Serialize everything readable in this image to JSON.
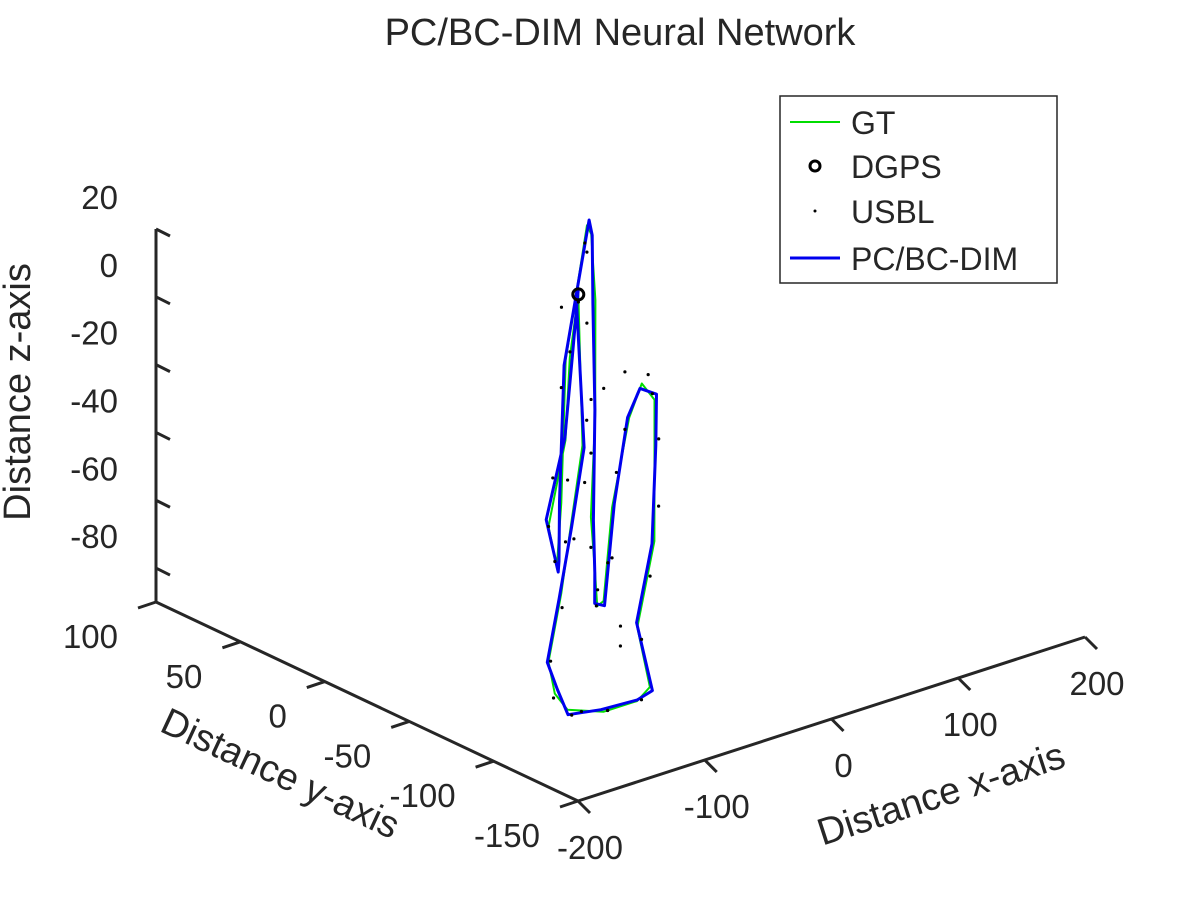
{
  "chart_data": {
    "type": "line3d",
    "title": "PC/BC-DIM Neural Network",
    "xlabel": "Distance x-axis",
    "ylabel": "Distance y-axis",
    "zlabel": "Distance z-axis",
    "xlim": [
      -200,
      200
    ],
    "ylim": [
      -150,
      100
    ],
    "zlim": [
      -90,
      20
    ],
    "xticks": [
      -200,
      -100,
      0,
      100,
      200
    ],
    "yticks": [
      -150,
      -100,
      -50,
      0,
      50,
      100
    ],
    "zticks": [
      -80,
      -60,
      -40,
      -20,
      0,
      20
    ],
    "grid": false,
    "legend": {
      "placement": "top-right",
      "entries": [
        "GT",
        "DGPS",
        "USBL",
        "PC/BC-DIM"
      ]
    },
    "colors": {
      "gt": "#00dd00",
      "pcbcdim": "#0000ee",
      "dgps": "#000000",
      "usbl": "#000000",
      "axis": "#262626"
    },
    "series": [
      {
        "name": "GT",
        "style": "line",
        "points": [
          [
            0,
            0,
            0
          ],
          [
            -40,
            -25,
            -8
          ],
          [
            -90,
            -60,
            -18
          ],
          [
            -150,
            -95,
            -28
          ],
          [
            -170,
            -115,
            -33
          ],
          [
            -150,
            -100,
            -38
          ],
          [
            -80,
            -50,
            -40
          ],
          [
            30,
            30,
            -30
          ],
          [
            140,
            100,
            -20
          ],
          [
            150,
            105,
            -25
          ],
          [
            120,
            80,
            -35
          ],
          [
            40,
            20,
            -45
          ],
          [
            -30,
            -30,
            -55
          ],
          [
            -60,
            -55,
            -62
          ],
          [
            -65,
            -60,
            -70
          ],
          [
            -40,
            -45,
            -75
          ],
          [
            40,
            10,
            -70
          ],
          [
            120,
            60,
            -65
          ],
          [
            150,
            75,
            -62
          ],
          [
            160,
            75,
            -68
          ],
          [
            140,
            60,
            -75
          ],
          [
            60,
            0,
            -80
          ],
          [
            -20,
            -50,
            -84
          ],
          [
            -70,
            -95,
            -85
          ],
          [
            -100,
            -110,
            -82
          ],
          [
            -140,
            -120,
            -78
          ],
          [
            -175,
            -125,
            -72
          ],
          [
            -185,
            -125,
            -66
          ],
          [
            -170,
            -110,
            -62
          ],
          [
            -120,
            -80,
            -55
          ],
          [
            -80,
            -55,
            -48
          ],
          [
            -30,
            -25,
            -35
          ],
          [
            0,
            0,
            0
          ]
        ]
      },
      {
        "name": "PC/BC-DIM",
        "style": "line",
        "points": [
          [
            0,
            0,
            0
          ],
          [
            -40,
            -25,
            -7
          ],
          [
            -90,
            -60,
            -17
          ],
          [
            -150,
            -95,
            -27
          ],
          [
            -170,
            -115,
            -33
          ],
          [
            -150,
            -100,
            -38
          ],
          [
            -80,
            -50,
            -40
          ],
          [
            30,
            30,
            -30
          ],
          [
            140,
            100,
            -20
          ],
          [
            150,
            105,
            -25
          ],
          [
            120,
            80,
            -35
          ],
          [
            40,
            20,
            -45
          ],
          [
            -30,
            -30,
            -55
          ],
          [
            -60,
            -55,
            -62
          ],
          [
            -65,
            -60,
            -70
          ],
          [
            -40,
            -45,
            -75
          ],
          [
            40,
            10,
            -70
          ],
          [
            120,
            60,
            -65
          ],
          [
            150,
            75,
            -62
          ],
          [
            160,
            75,
            -68
          ],
          [
            140,
            60,
            -75
          ],
          [
            60,
            0,
            -80
          ],
          [
            -20,
            -50,
            -84
          ],
          [
            -70,
            -95,
            -85
          ],
          [
            -100,
            -110,
            -82
          ],
          [
            -140,
            -120,
            -78
          ],
          [
            -175,
            -125,
            -72
          ],
          [
            -185,
            -125,
            -66
          ],
          [
            -170,
            -110,
            -62
          ],
          [
            -120,
            -80,
            -55
          ],
          [
            -80,
            -55,
            -48
          ],
          [
            -30,
            -25,
            -35
          ],
          [
            0,
            0,
            0
          ]
        ]
      },
      {
        "name": "DGPS",
        "style": "marker-o",
        "points": [
          [
            0,
            0,
            0
          ]
        ]
      },
      {
        "name": "USBL",
        "style": "dots",
        "points": [
          [
            -150,
            -95,
            -28
          ],
          [
            -120,
            -75,
            -22
          ],
          [
            -60,
            -35,
            -12
          ],
          [
            -165,
            -110,
            -33
          ],
          [
            -110,
            -80,
            -40
          ],
          [
            40,
            35,
            -30
          ],
          [
            80,
            60,
            -26
          ],
          [
            120,
            85,
            -22
          ],
          [
            145,
            105,
            -27
          ],
          [
            100,
            70,
            -37
          ],
          [
            60,
            30,
            -42
          ],
          [
            10,
            0,
            -48
          ],
          [
            -50,
            -45,
            -58
          ],
          [
            -62,
            -58,
            -66
          ],
          [
            -55,
            -52,
            -73
          ],
          [
            0,
            -20,
            -73
          ],
          [
            70,
            30,
            -68
          ],
          [
            110,
            55,
            -66
          ],
          [
            155,
            75,
            -60
          ],
          [
            165,
            80,
            -68
          ],
          [
            150,
            65,
            -76
          ],
          [
            90,
            20,
            -78
          ],
          [
            30,
            -20,
            -82
          ],
          [
            -30,
            -60,
            -84
          ],
          [
            -90,
            -105,
            -84
          ],
          [
            -130,
            -115,
            -80
          ],
          [
            -160,
            -122,
            -75
          ],
          [
            -190,
            -128,
            -66
          ],
          [
            -175,
            -115,
            -60
          ],
          [
            -130,
            -88,
            -56
          ],
          [
            -90,
            -60,
            -48
          ],
          [
            -20,
            -20,
            -30
          ],
          [
            40,
            40,
            -18
          ],
          [
            -95,
            -65,
            -28
          ],
          [
            25,
            15,
            -62
          ],
          [
            70,
            45,
            -50
          ],
          [
            130,
            70,
            -55
          ],
          [
            -60,
            -70,
            -80
          ],
          [
            -150,
            -130,
            -74
          ],
          [
            -185,
            -135,
            -70
          ],
          [
            -20,
            -40,
            -86
          ],
          [
            10,
            -10,
            -78
          ]
        ]
      }
    ]
  }
}
